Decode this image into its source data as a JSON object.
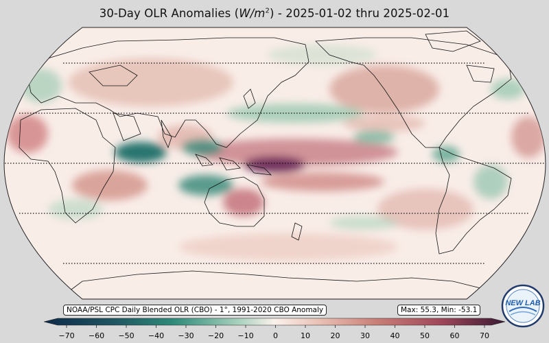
{
  "title": {
    "prefix": "30-Day OLR Anomalies (",
    "unit_italic": "W/m",
    "unit_exp": "2",
    "suffix": ") - 2025-01-02 thru 2025-02-01"
  },
  "map": {
    "projection": "Robinson (Pacific-centered)",
    "graticule": "dotted latitude lines"
  },
  "source_label": "NOAA/PSL CPC Daily Blended OLR (CBO) - 1°, 1991-2020 CBO Anomaly",
  "stats_label": "Max: 55.3,  Min: -53.1",
  "colorbar": {
    "ticks": [
      "−70",
      "−60",
      "−50",
      "−40",
      "−30",
      "−20",
      "−10",
      "0",
      "10",
      "20",
      "30",
      "40",
      "50",
      "60",
      "70"
    ],
    "min": -70,
    "max": 70,
    "colors": {
      "neg_extreme": "#0d2a4a",
      "neg_strong": "#1e6f6a",
      "neg_mid": "#6db39a",
      "neutral": "#fbf1ec",
      "pos_mid": "#d49a8a",
      "pos_strong": "#a84a5a",
      "pos_extreme": "#4a1a3a"
    }
  },
  "logo": {
    "text": "NEW LAB"
  }
}
